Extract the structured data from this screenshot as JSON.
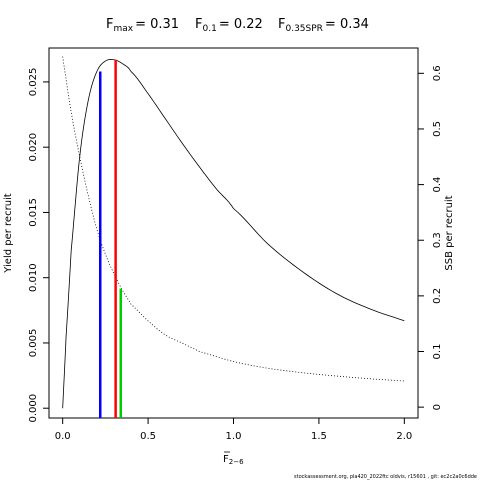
{
  "chart_data": {
    "type": "line",
    "title": {
      "fmax_label": "F",
      "fmax_sub": "max",
      "fmax_value": "= 0.31",
      "f01_label": "F",
      "f01_sub": "0.1",
      "f01_value": "= 0.22",
      "fspr_label": "F",
      "fspr_sub": "0.35SPR",
      "fspr_value": "= 0.34"
    },
    "xlabel": "F",
    "xlabel_sub": "2−6",
    "ylabel_left": "Yield per recruit",
    "ylabel_right": "SSB per recruit",
    "xlim": [
      -0.08,
      2.08
    ],
    "ylim_left": [
      -0.00075,
      0.0276
    ],
    "ylim_right": [
      -0.0195,
      0.6455
    ],
    "x_ticks": [
      0,
      0.5,
      1,
      1.5,
      2
    ],
    "x_tick_labels": [
      "0.0",
      "0.5",
      "1.0",
      "1.5",
      "2.0"
    ],
    "y_left_ticks": [
      0,
      0.005,
      0.01,
      0.015,
      0.02,
      0.025
    ],
    "y_left_tick_labels": [
      "0.000",
      "0.005",
      "0.010",
      "0.015",
      "0.020",
      "0.025"
    ],
    "y_right_ticks": [
      0,
      0.1,
      0.2,
      0.3,
      0.4,
      0.5,
      0.6
    ],
    "y_right_tick_labels": [
      "0",
      "0.1",
      "0.2",
      "0.3",
      "0.4",
      "0.5",
      "0.6"
    ],
    "series": [
      {
        "axis": "left",
        "style": "solid",
        "x": [
          0,
          0.02,
          0.05,
          0.1,
          0.15,
          0.2,
          0.25,
          0.3,
          0.35,
          0.4,
          0.5,
          0.6,
          0.7,
          0.8,
          0.9,
          1.0,
          1.2,
          1.4,
          1.6,
          1.8,
          2.0
        ],
        "y": [
          0,
          0.0055,
          0.0121,
          0.0193,
          0.0236,
          0.0258,
          0.0266,
          0.0267,
          0.0264,
          0.0258,
          0.0241,
          0.0222,
          0.0203,
          0.0185,
          0.0168,
          0.0153,
          0.0126,
          0.0105,
          0.0088,
          0.0076,
          0.0067
        ]
      },
      {
        "axis": "right",
        "style": "dotted",
        "x": [
          0,
          0.05,
          0.1,
          0.15,
          0.2,
          0.25,
          0.3,
          0.35,
          0.4,
          0.5,
          0.6,
          0.7,
          0.8,
          1.0,
          1.2,
          1.4,
          1.6,
          1.8,
          2.0
        ],
        "y": [
          0.63,
          0.53,
          0.45,
          0.38,
          0.32,
          0.275,
          0.24,
          0.21,
          0.185,
          0.155,
          0.13,
          0.115,
          0.1,
          0.082,
          0.07,
          0.062,
          0.056,
          0.051,
          0.047
        ]
      }
    ],
    "reference_lines": [
      {
        "name": "F0.1",
        "x": 0.22,
        "axis": "left",
        "y": 0.0258,
        "color": "#0000ff"
      },
      {
        "name": "Fmax",
        "x": 0.31,
        "axis": "left",
        "y": 0.0267,
        "color": "#ff0000"
      },
      {
        "name": "F0.35SPR",
        "x": 0.34,
        "axis": "right",
        "y": 0.213,
        "color": "#00cc00"
      }
    ]
  },
  "footer": "stockassessment.org, pla420_2022ftc oldvis, r15601 , git: ec2c2a0c6dde"
}
